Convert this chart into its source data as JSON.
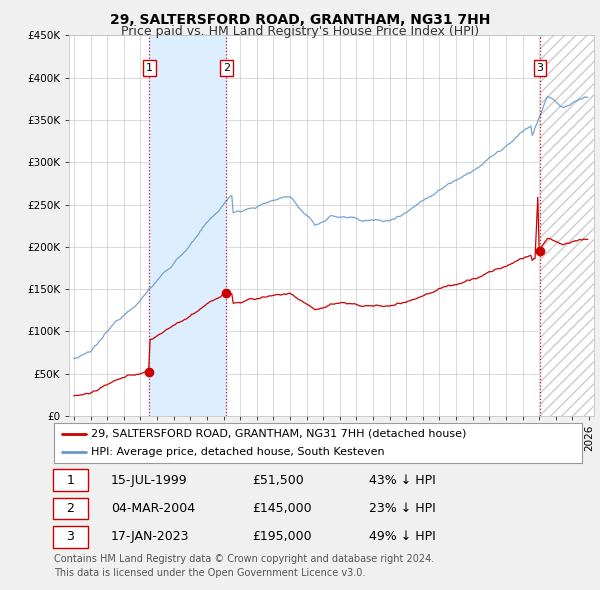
{
  "title": "29, SALTERSFORD ROAD, GRANTHAM, NG31 7HH",
  "subtitle": "Price paid vs. HM Land Registry's House Price Index (HPI)",
  "ylim": [
    0,
    450000
  ],
  "yticks": [
    0,
    50000,
    100000,
    150000,
    200000,
    250000,
    300000,
    350000,
    400000,
    450000
  ],
  "ytick_labels": [
    "£0",
    "£50K",
    "£100K",
    "£150K",
    "£200K",
    "£250K",
    "£300K",
    "£350K",
    "£400K",
    "£450K"
  ],
  "sale_dates": [
    1999.54,
    2004.17,
    2023.04
  ],
  "sale_prices": [
    51500,
    145000,
    195000
  ],
  "sale_labels": [
    "1",
    "2",
    "3"
  ],
  "sale_color": "#cc0000",
  "hpi_color": "#6699cc",
  "hpi_band_color": "#ddeeff",
  "background_color": "#f0f0f0",
  "plot_bg_color": "#ffffff",
  "grid_color": "#cccccc",
  "xlim_start": 1994.7,
  "xlim_end": 2026.3,
  "xtick_start": 1995,
  "xtick_end": 2027,
  "legend_entries": [
    "29, SALTERSFORD ROAD, GRANTHAM, NG31 7HH (detached house)",
    "HPI: Average price, detached house, South Kesteven"
  ],
  "table_rows": [
    [
      "1",
      "15-JUL-1999",
      "£51,500",
      "43% ↓ HPI"
    ],
    [
      "2",
      "04-MAR-2004",
      "£145,000",
      "23% ↓ HPI"
    ],
    [
      "3",
      "17-JAN-2023",
      "£195,000",
      "49% ↓ HPI"
    ]
  ],
  "footnote": "Contains HM Land Registry data © Crown copyright and database right 2024.\nThis data is licensed under the Open Government Licence v3.0.",
  "title_fontsize": 10,
  "subtitle_fontsize": 9,
  "tick_fontsize": 7.5
}
